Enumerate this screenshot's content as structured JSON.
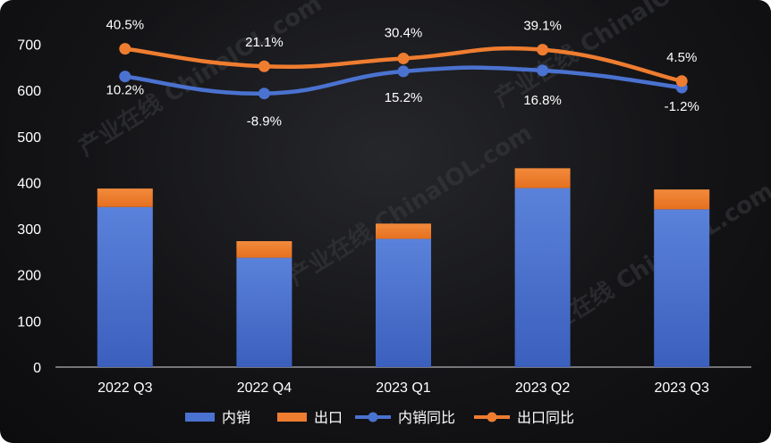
{
  "chart_data": {
    "type": "bar",
    "categories": [
      "2022 Q3",
      "2022 Q4",
      "2023 Q1",
      "2023 Q2",
      "2023 Q3"
    ],
    "series": [
      {
        "name": "内销",
        "type": "bar",
        "stacked": true,
        "color": "#4a72d0",
        "values": [
          347,
          237,
          278,
          388,
          342
        ]
      },
      {
        "name": "出口",
        "type": "bar",
        "stacked": true,
        "color": "#ef7d30",
        "values": [
          40,
          36,
          33,
          43,
          43
        ]
      },
      {
        "name": "内销同比",
        "type": "line",
        "color": "#4a72d0",
        "values_y": [
          630,
          593,
          641,
          643,
          606
        ],
        "labels": [
          "10.2%",
          "-8.9%",
          "15.2%",
          "16.8%",
          "-1.2%"
        ]
      },
      {
        "name": "出口同比",
        "type": "line",
        "color": "#ef7d30",
        "values_y": [
          690,
          652,
          669,
          688,
          620
        ],
        "labels": [
          "40.5%",
          "21.1%",
          "30.4%",
          "39.1%",
          "4.5%"
        ]
      }
    ],
    "yticks": [
      0,
      100,
      200,
      300,
      400,
      500,
      600,
      700
    ],
    "ylim": [
      0,
      760
    ],
    "title": "",
    "xlabel": "",
    "ylabel": "",
    "grid": false,
    "legend": "bottom",
    "watermark": "产业在线 ChinaIOL.com"
  }
}
